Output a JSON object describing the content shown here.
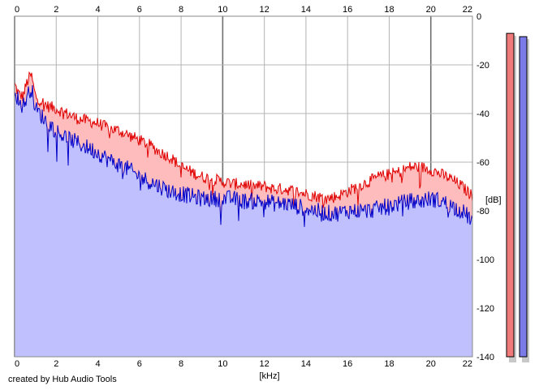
{
  "credit": "created by Hub Audio Tools",
  "colors": {
    "background": "#ffffff",
    "grid": "#b4b4b4",
    "grid_major": "#6e6e6e",
    "left_line": "#e00000",
    "left_fill": "#ffbcbc",
    "right_line": "#0000c8",
    "right_fill": "#c0c0ff",
    "meter_left": "#f07a7a",
    "meter_right": "#7a7ae8"
  },
  "chart_data": {
    "type": "area",
    "title": "",
    "xlabel": "[kHz]",
    "ylabel": "[dB]",
    "xlim": [
      0,
      22
    ],
    "ylim": [
      -140,
      0
    ],
    "x_ticks": [
      "0",
      "2",
      "4",
      "6",
      "8",
      "10",
      "12",
      "14",
      "16",
      "18",
      "20",
      "22"
    ],
    "y_ticks": [
      "0",
      "-20",
      "-40",
      "-60",
      "-80",
      "-100",
      "-120",
      "-140"
    ],
    "grid": true,
    "series": [
      {
        "channel": "left",
        "x": [
          0,
          0.2,
          0.4,
          0.6,
          0.8,
          1,
          1.3,
          1.6,
          2,
          2.5,
          3,
          3.5,
          4,
          4.5,
          5,
          5.5,
          6,
          6.5,
          7,
          7.5,
          8,
          8.5,
          9,
          9.5,
          10,
          10.5,
          11,
          11.5,
          12,
          12.5,
          13,
          13.5,
          14,
          14.5,
          15,
          15.5,
          16,
          16.5,
          17,
          17.5,
          18,
          18.5,
          19,
          19.5,
          20,
          20.5,
          21,
          21.5,
          22
        ],
        "values": [
          -28,
          -32,
          -33,
          -27,
          -24,
          -33,
          -35,
          -37,
          -38,
          -40,
          -42,
          -43,
          -44,
          -46,
          -47,
          -49,
          -51,
          -53,
          -56,
          -58,
          -62,
          -64,
          -66,
          -67,
          -68,
          -69,
          -69,
          -70,
          -70,
          -71,
          -71,
          -72,
          -73,
          -74,
          -75,
          -74,
          -72,
          -70,
          -68,
          -66,
          -65,
          -64,
          -62,
          -62,
          -63,
          -65,
          -67,
          -70,
          -74
        ]
      },
      {
        "channel": "right",
        "x": [
          0,
          0.2,
          0.4,
          0.6,
          0.8,
          1,
          1.3,
          1.6,
          2,
          2.5,
          3,
          3.5,
          4,
          4.5,
          5,
          5.5,
          6,
          6.5,
          7,
          7.5,
          8,
          8.5,
          9,
          9.5,
          10,
          10.5,
          11,
          11.5,
          12,
          12.5,
          13,
          13.5,
          14,
          14.5,
          15,
          15.5,
          16,
          16.5,
          17,
          17.5,
          18,
          18.5,
          19,
          19.5,
          20,
          20.5,
          21,
          21.5,
          22
        ],
        "values": [
          -30,
          -35,
          -37,
          -33,
          -29,
          -38,
          -41,
          -44,
          -47,
          -50,
          -52,
          -54,
          -56,
          -59,
          -61,
          -63,
          -66,
          -68,
          -70,
          -72,
          -73,
          -74,
          -75,
          -75,
          -75,
          -75,
          -76,
          -76,
          -76,
          -77,
          -77,
          -78,
          -79,
          -80,
          -81,
          -81,
          -80,
          -80,
          -80,
          -79,
          -78,
          -77,
          -76,
          -76,
          -75,
          -76,
          -78,
          -80,
          -84
        ]
      }
    ],
    "meters": {
      "left": 0.98,
      "right": 0.97
    }
  }
}
